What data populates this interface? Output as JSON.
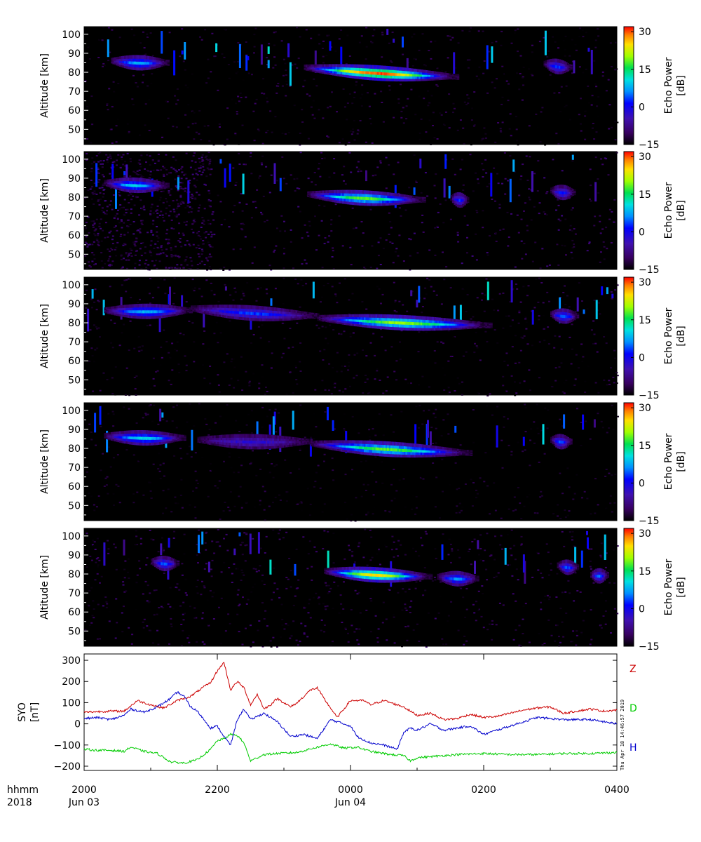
{
  "chart_data": [
    {
      "type": "heatmap",
      "panel": 1,
      "ylabel": "Altitude [km]",
      "yticks": [
        50,
        60,
        70,
        80,
        90,
        100
      ],
      "ylim": [
        42,
        104
      ],
      "colorbar": {
        "label": "Echo Power",
        "unit": "[dB]",
        "ticks": [
          -15,
          0,
          15,
          30
        ],
        "range": [
          -15,
          32
        ]
      },
      "noise_level_db": -13,
      "echo_layers": [
        {
          "t_start": -3.6,
          "t_end": -2.75,
          "alt_start": 86.5,
          "alt_end": 85.5,
          "peak_db": 8
        },
        {
          "t_start": -0.7,
          "t_end": 1.6,
          "alt_start": 83,
          "alt_end": 78,
          "peak_db": 30
        },
        {
          "t_start": 2.9,
          "t_end": 3.3,
          "alt_start": 85,
          "alt_end": 83,
          "peak_db": 3
        }
      ]
    },
    {
      "type": "heatmap",
      "panel": 2,
      "ylabel": "Altitude [km]",
      "yticks": [
        50,
        60,
        70,
        80,
        90,
        100
      ],
      "ylim": [
        42,
        104
      ],
      "colorbar": {
        "label": "Echo Power",
        "unit": "[dB]",
        "ticks": [
          -15,
          0,
          15,
          30
        ],
        "range": [
          -15,
          32
        ]
      },
      "noise_level_db": -11,
      "echo_layers": [
        {
          "t_start": -3.7,
          "t_end": -2.75,
          "alt_start": 88,
          "alt_end": 86.5,
          "peak_db": 10
        },
        {
          "t_start": -0.65,
          "t_end": 1.1,
          "alt_start": 82,
          "alt_end": 79,
          "peak_db": 18
        },
        {
          "t_start": 1.5,
          "t_end": 1.75,
          "alt_start": 80,
          "alt_end": 79,
          "peak_db": 3
        },
        {
          "t_start": 3.0,
          "t_end": 3.35,
          "alt_start": 84,
          "alt_end": 83,
          "peak_db": 2
        }
      ]
    },
    {
      "type": "heatmap",
      "panel": 3,
      "ylabel": "Altitude [km]",
      "yticks": [
        50,
        60,
        70,
        80,
        90,
        100
      ],
      "ylim": [
        42,
        104
      ],
      "colorbar": {
        "label": "Echo Power",
        "unit": "[dB]",
        "ticks": [
          -15,
          0,
          15,
          30
        ],
        "range": [
          -15,
          32
        ]
      },
      "noise_level_db": -13,
      "echo_layers": [
        {
          "t_start": -3.7,
          "t_end": -2.4,
          "alt_start": 87,
          "alt_end": 87,
          "peak_db": 8
        },
        {
          "t_start": -2.4,
          "t_end": -0.5,
          "alt_start": 88,
          "alt_end": 84,
          "peak_db": 3
        },
        {
          "t_start": -0.5,
          "t_end": 2.1,
          "alt_start": 83,
          "alt_end": 79,
          "peak_db": 20
        },
        {
          "t_start": 3.0,
          "t_end": 3.4,
          "alt_start": 85,
          "alt_end": 84,
          "peak_db": 5
        }
      ]
    },
    {
      "type": "heatmap",
      "panel": 4,
      "ylabel": "Altitude [km]",
      "yticks": [
        50,
        60,
        70,
        80,
        90,
        100
      ],
      "ylim": [
        42,
        104
      ],
      "colorbar": {
        "label": "Echo Power",
        "unit": "[dB]",
        "ticks": [
          -15,
          0,
          15,
          30
        ],
        "range": [
          -15,
          32
        ]
      },
      "noise_level_db": -14,
      "echo_layers": [
        {
          "t_start": -3.7,
          "t_end": -2.5,
          "alt_start": 87,
          "alt_end": 86,
          "peak_db": 10
        },
        {
          "t_start": -2.3,
          "t_end": -0.6,
          "alt_start": 85,
          "alt_end": 84,
          "peak_db": -2
        },
        {
          "t_start": -0.6,
          "t_end": 1.8,
          "alt_start": 83,
          "alt_end": 78,
          "peak_db": 18
        },
        {
          "t_start": 3.0,
          "t_end": 3.3,
          "alt_start": 85,
          "alt_end": 84,
          "peak_db": 4
        }
      ]
    },
    {
      "type": "heatmap",
      "panel": 5,
      "ylabel": "Altitude [km]",
      "yticks": [
        50,
        60,
        70,
        80,
        90,
        100
      ],
      "ylim": [
        42,
        104
      ],
      "colorbar": {
        "label": "Echo Power",
        "unit": "[dB]",
        "ticks": [
          -15,
          0,
          15,
          30
        ],
        "range": [
          -15,
          32
        ]
      },
      "noise_level_db": -12,
      "echo_layers": [
        {
          "t_start": -3.0,
          "t_end": -2.6,
          "alt_start": 87,
          "alt_end": 86,
          "peak_db": 4
        },
        {
          "t_start": -0.4,
          "t_end": 1.2,
          "alt_start": 82,
          "alt_end": 79,
          "peak_db": 25
        },
        {
          "t_start": 1.3,
          "t_end": 1.9,
          "alt_start": 79,
          "alt_end": 78,
          "peak_db": 6
        },
        {
          "t_start": 3.1,
          "t_end": 3.4,
          "alt_start": 85,
          "alt_end": 84,
          "peak_db": 4
        },
        {
          "t_start": 3.6,
          "t_end": 3.85,
          "alt_start": 80,
          "alt_end": 80,
          "peak_db": 5
        }
      ]
    },
    {
      "type": "line",
      "ylabel": "SYO",
      "yunit": "[nT]",
      "yticks": [
        -200,
        -100,
        0,
        100,
        200,
        300
      ],
      "ylim": [
        -220,
        330
      ],
      "x_axis": {
        "row1_label": "hhmm",
        "row2_label": "2018",
        "ticks": [
          "2000",
          "2200",
          "0000",
          "0200",
          "0400"
        ],
        "tick_hours": [
          -4,
          -2,
          0,
          2,
          4
        ],
        "dates": [
          {
            "label": "Jun 03",
            "hour": -4
          },
          {
            "label": "Jun 04",
            "hour": 0
          }
        ]
      },
      "series": [
        {
          "name": "Z",
          "color": "#cc0000",
          "x": [
            -4.0,
            -3.6,
            -3.4,
            -3.2,
            -3.0,
            -2.8,
            -2.6,
            -2.4,
            -2.2,
            -2.1,
            -2.0,
            -1.9,
            -1.8,
            -1.7,
            -1.6,
            -1.5,
            -1.4,
            -1.3,
            -1.2,
            -1.1,
            -1.0,
            -0.9,
            -0.8,
            -0.6,
            -0.5,
            -0.4,
            -0.2,
            0.0,
            0.2,
            0.3,
            0.5,
            0.6,
            0.8,
            1.0,
            1.2,
            1.4,
            1.6,
            1.8,
            2.0,
            2.2,
            2.4,
            2.6,
            2.8,
            3.0,
            3.2,
            3.4,
            3.6,
            3.8,
            4.0
          ],
          "y": [
            55,
            60,
            60,
            110,
            90,
            75,
            110,
            130,
            175,
            195,
            250,
            290,
            160,
            200,
            170,
            90,
            140,
            70,
            90,
            120,
            100,
            80,
            100,
            160,
            170,
            120,
            30,
            110,
            110,
            90,
            110,
            100,
            80,
            40,
            50,
            20,
            25,
            45,
            30,
            35,
            50,
            65,
            75,
            80,
            50,
            60,
            70,
            60,
            65
          ]
        },
        {
          "name": "D",
          "color": "#00cc00",
          "x": [
            -4.0,
            -3.8,
            -3.6,
            -3.4,
            -3.3,
            -3.1,
            -2.9,
            -2.7,
            -2.5,
            -2.3,
            -2.1,
            -2.0,
            -1.9,
            -1.8,
            -1.7,
            -1.6,
            -1.5,
            -1.3,
            -1.1,
            -0.8,
            -0.5,
            -0.3,
            -0.1,
            0.1,
            0.3,
            0.6,
            0.8,
            0.9,
            1.0,
            1.2,
            1.6,
            2.0,
            2.4,
            2.8,
            3.2,
            3.6,
            4.0
          ],
          "y": [
            -120,
            -125,
            -125,
            -130,
            -110,
            -130,
            -140,
            -180,
            -185,
            -170,
            -120,
            -80,
            -70,
            -50,
            -55,
            -90,
            -175,
            -145,
            -140,
            -135,
            -110,
            -95,
            -115,
            -110,
            -130,
            -145,
            -150,
            -175,
            -160,
            -155,
            -145,
            -140,
            -145,
            -145,
            -140,
            -140,
            -135
          ]
        },
        {
          "name": "H",
          "color": "#0000cc",
          "x": [
            -4.0,
            -3.8,
            -3.6,
            -3.4,
            -3.3,
            -3.1,
            -2.9,
            -2.7,
            -2.6,
            -2.5,
            -2.4,
            -2.3,
            -2.2,
            -2.1,
            -2.0,
            -1.9,
            -1.8,
            -1.7,
            -1.6,
            -1.5,
            -1.3,
            -1.1,
            -0.9,
            -0.7,
            -0.5,
            -0.3,
            -0.1,
            0.0,
            0.1,
            0.3,
            0.5,
            0.7,
            0.8,
            0.9,
            1.0,
            1.2,
            1.4,
            1.6,
            1.8,
            2.0,
            2.4,
            2.8,
            3.2,
            3.6,
            4.0
          ],
          "y": [
            25,
            30,
            20,
            40,
            70,
            55,
            80,
            120,
            150,
            130,
            80,
            60,
            20,
            -20,
            -10,
            -60,
            -100,
            20,
            70,
            20,
            50,
            10,
            -60,
            -50,
            -70,
            20,
            0,
            -10,
            -60,
            -90,
            -100,
            -120,
            -40,
            -20,
            -30,
            0,
            -30,
            -20,
            -10,
            -50,
            -10,
            30,
            20,
            20,
            0
          ]
        }
      ]
    }
  ],
  "footer": {
    "row1": "hhmm",
    "row2": "2018",
    "timestamp": "Thu Apr 18 14:46:57 2019"
  }
}
